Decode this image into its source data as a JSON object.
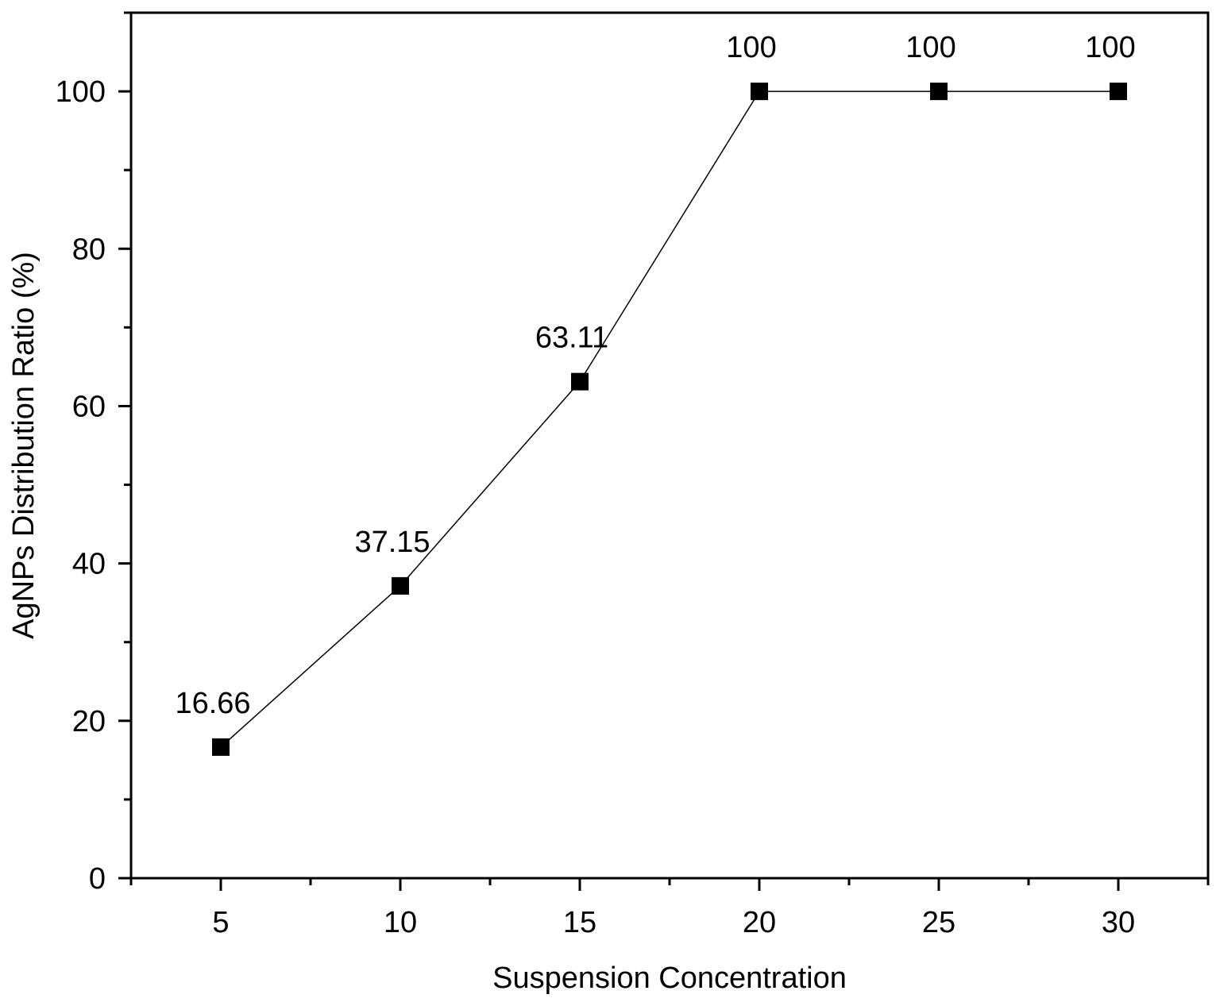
{
  "chart_data": {
    "type": "line",
    "title": "",
    "xlabel": "Suspension Concentration",
    "ylabel": "AgNPs Distribution Ratio (%)",
    "x": [
      5,
      10,
      15,
      20,
      25,
      30
    ],
    "series": [
      {
        "values": [
          16.66,
          37.15,
          63.11,
          100,
          100,
          100
        ],
        "data_labels": [
          "16.66",
          "37.15",
          "63.11",
          "100",
          "100",
          "100"
        ],
        "marker": "square",
        "color": "#000000"
      }
    ],
    "xlim": [
      2.5,
      32.5
    ],
    "ylim": [
      0,
      110
    ],
    "xticks": [
      5,
      10,
      15,
      20,
      25,
      30
    ],
    "xtick_labels": [
      "5",
      "10",
      "15",
      "20",
      "25",
      "30"
    ],
    "yticks": [
      0,
      20,
      40,
      60,
      80,
      100
    ],
    "ytick_labels": [
      "0",
      "20",
      "40",
      "60",
      "80",
      "100"
    ],
    "grid": false,
    "legend": "none"
  }
}
